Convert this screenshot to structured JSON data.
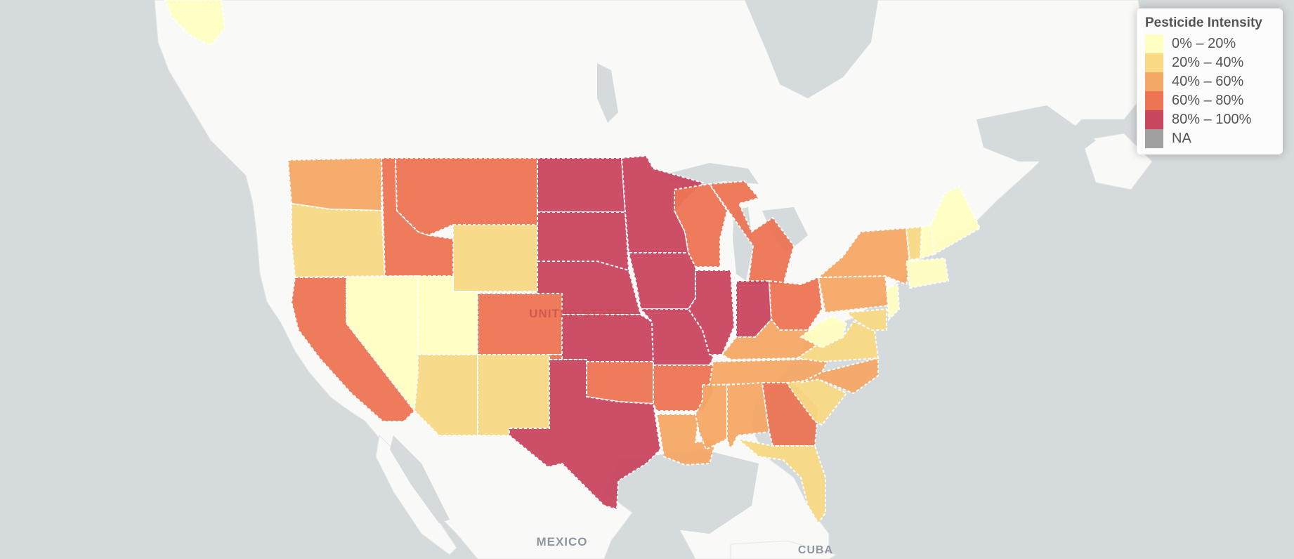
{
  "legend": {
    "title": "Pesticide Intensity",
    "items": [
      {
        "label": "0% – 20%",
        "color": "#ffffc2"
      },
      {
        "label": "20% – 40%",
        "color": "#f8d984"
      },
      {
        "label": "40% – 60%",
        "color": "#f4a865"
      },
      {
        "label": "60% – 80%",
        "color": "#ec7453"
      },
      {
        "label": "80% – 100%",
        "color": "#c9465f"
      },
      {
        "label": "NA",
        "color": "#a0a0a0"
      }
    ]
  },
  "labels": {
    "country": "UNITED STATES",
    "mexico": "MEXICO",
    "cuba": "CUBA"
  },
  "colors": {
    "water": "#d5dadc",
    "land": "#f9f9f8",
    "border": "#ffffff"
  }
}
